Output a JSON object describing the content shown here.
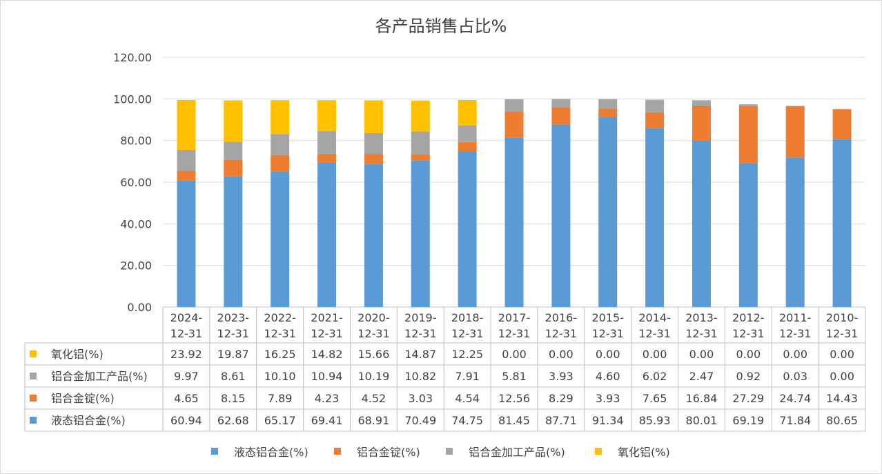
{
  "chart_data": {
    "type": "bar",
    "stacked": true,
    "title": "各产品销售占比%",
    "categories": [
      [
        "2024-",
        "12-31"
      ],
      [
        "2023-",
        "12-31"
      ],
      [
        "2022-",
        "12-31"
      ],
      [
        "2021-",
        "12-31"
      ],
      [
        "2020-",
        "12-31"
      ],
      [
        "2019-",
        "12-31"
      ],
      [
        "2018-",
        "12-31"
      ],
      [
        "2017-",
        "12-31"
      ],
      [
        "2016-",
        "12-31"
      ],
      [
        "2015-",
        "12-31"
      ],
      [
        "2014-",
        "12-31"
      ],
      [
        "2013-",
        "12-31"
      ],
      [
        "2012-",
        "12-31"
      ],
      [
        "2011-",
        "12-31"
      ],
      [
        "2010-",
        "12-31"
      ]
    ],
    "ylim": [
      0,
      120
    ],
    "yticks": [
      "0.00",
      "20.00",
      "40.00",
      "60.00",
      "80.00",
      "100.00",
      "120.00"
    ],
    "grid": true,
    "legend_position": "bottom",
    "series": [
      {
        "name": "液态铝合金(%)",
        "color": "#5b9bd5",
        "values": [
          60.94,
          62.68,
          65.17,
          69.41,
          68.91,
          70.49,
          74.75,
          81.45,
          87.71,
          91.34,
          85.93,
          80.01,
          69.19,
          71.84,
          80.65
        ],
        "labels": [
          "60.94",
          "62.68",
          "65.17",
          "69.41",
          "68.91",
          "70.49",
          "74.75",
          "81.45",
          "87.71",
          "91.34",
          "85.93",
          "80.01",
          "69.19",
          "71.84",
          "80.65"
        ]
      },
      {
        "name": "铝合金锭(%)",
        "color": "#ed7d31",
        "values": [
          4.65,
          8.15,
          7.89,
          4.23,
          4.52,
          3.03,
          4.54,
          12.56,
          8.29,
          3.93,
          7.65,
          16.84,
          27.29,
          24.74,
          14.43
        ],
        "labels": [
          "4.65",
          "8.15",
          "7.89",
          "4.23",
          "4.52",
          "3.03",
          "4.54",
          "12.56",
          "8.29",
          "3.93",
          "7.65",
          "16.84",
          "27.29",
          "24.74",
          "14.43"
        ]
      },
      {
        "name": "铝合金加工产品(%)",
        "color": "#a5a5a5",
        "values": [
          9.97,
          8.61,
          10.1,
          10.94,
          10.19,
          10.82,
          7.91,
          5.81,
          3.93,
          4.6,
          6.02,
          2.47,
          0.92,
          0.03,
          0.0
        ],
        "labels": [
          "9.97",
          "8.61",
          "10.10",
          "10.94",
          "10.19",
          "10.82",
          "7.91",
          "5.81",
          "3.93",
          "4.60",
          "6.02",
          "2.47",
          "0.92",
          "0.03",
          "0.00"
        ]
      },
      {
        "name": "氧化铝(%)",
        "color": "#ffc000",
        "values": [
          23.92,
          19.87,
          16.25,
          14.82,
          15.66,
          14.87,
          12.25,
          0.0,
          0.0,
          0.0,
          0.0,
          0.0,
          0.0,
          0.0,
          0.0
        ],
        "labels": [
          "23.92",
          "19.87",
          "16.25",
          "14.82",
          "15.66",
          "14.87",
          "12.25",
          "0.00",
          "0.00",
          "0.00",
          "0.00",
          "0.00",
          "0.00",
          "0.00",
          "0.00"
        ]
      }
    ],
    "table_row_order": [
      3,
      2,
      1,
      0
    ]
  }
}
